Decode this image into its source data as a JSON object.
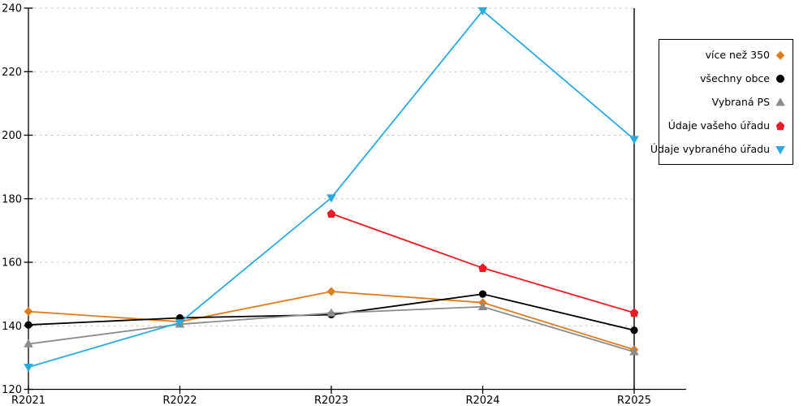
{
  "chart_data": {
    "type": "line",
    "title": "",
    "xlabel": "",
    "ylabel": "",
    "x_categories": [
      "R2021",
      "R2022",
      "R2023",
      "R2024",
      "R2025"
    ],
    "ylim": [
      120,
      240
    ],
    "yticks": [
      120,
      140,
      160,
      180,
      200,
      220,
      240
    ],
    "grid": "horizontal-dashed",
    "grid_color": "#bfbfbf",
    "axis_color": "#000000",
    "highlighted_category": "R2025",
    "legend_position": "outside-right",
    "series": [
      {
        "name": "více než 350",
        "color": "#e07b1a",
        "marker": "diamond",
        "values": [
          144.5,
          141.3,
          150.8,
          147.3,
          132.5
        ]
      },
      {
        "name": "všechny obce",
        "color": "#000000",
        "marker": "circle",
        "values": [
          140.3,
          142.5,
          143.5,
          150.0,
          138.6
        ]
      },
      {
        "name": "Vybraná PS",
        "color": "#8c8c8c",
        "marker": "triangle-up",
        "values": [
          134.3,
          140.5,
          144.0,
          146.0,
          131.8
        ]
      },
      {
        "name": "Údaje vašeho úřadu",
        "color": "#ec1b23",
        "marker": "pentagon",
        "values": [
          null,
          null,
          175.3,
          158.2,
          144.1
        ]
      },
      {
        "name": "Údaje vybraného úřadu",
        "color": "#29abe2",
        "marker": "triangle-down",
        "values": [
          127.0,
          141.0,
          180.3,
          239.2,
          198.7
        ]
      }
    ]
  }
}
